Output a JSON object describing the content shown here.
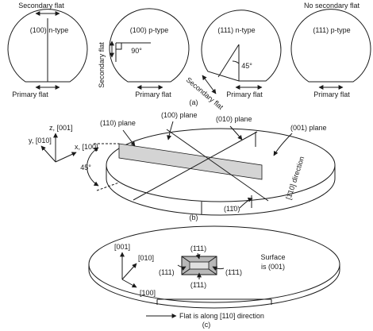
{
  "panel_a": {
    "sub": "(a)",
    "wafers": [
      {
        "label": "(100) n-type",
        "top": "Secondary flat",
        "bottom": "Primary flat"
      },
      {
        "label": "(100) p-type",
        "side": "Secondary flat",
        "angle": "90°",
        "bottom": "Primary flat"
      },
      {
        "label": "(111) n-type",
        "side": "Secondary flat",
        "angle": "45°",
        "bottom": "Primary flat"
      },
      {
        "label": "(111) p-type",
        "top": "No secondary flat",
        "bottom": "Primary flat"
      }
    ]
  },
  "panel_b": {
    "sub": "(b)",
    "axis_z": "z, [001]",
    "axis_y": "y, [010]",
    "axis_x": "x, [100]",
    "angle": "45°",
    "plane_110": "(110) plane",
    "plane_100": "(100) plane",
    "plane_010": "(010) plane",
    "plane_001": "(001) plane",
    "direction": "[1̄10] direction",
    "flat_label": "(11̄0)"
  },
  "panel_c": {
    "sub": "(c)",
    "dir_001": "[001]",
    "dir_010": "[010]",
    "dir_100": "[100]",
    "facet_top": "(1̄11)",
    "facet_left": "(111)",
    "facet_right": "(1̄1̄1)",
    "facet_bottom": "(1̄11)",
    "surface_line1": "Surface",
    "surface_line2": "is (001)",
    "flat_note": "Flat is along [110] direction"
  }
}
